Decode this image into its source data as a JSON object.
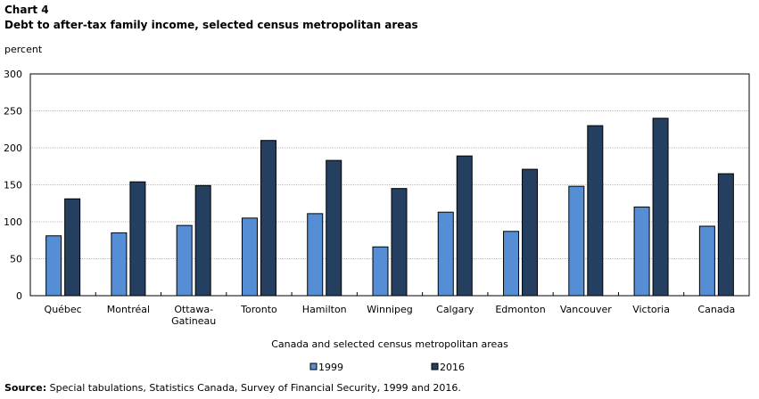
{
  "chart_data": {
    "type": "bar",
    "chart_label": "Chart 4",
    "title": "Debt to after-tax family income, selected census metropolitan areas",
    "ylabel": "percent",
    "xlabel": "Canada and selected census metropolitan areas",
    "ylim": [
      0,
      300
    ],
    "yticks": [
      0,
      50,
      100,
      150,
      200,
      250,
      300
    ],
    "grid": true,
    "legend": "bottom",
    "categories": [
      "Québec",
      "Montréal",
      "Ottawa-\nGatineau",
      "Toronto",
      "Hamilton",
      "Winnipeg",
      "Calgary",
      "Edmonton",
      "Vancouver",
      "Victoria",
      "Canada"
    ],
    "series": [
      {
        "name": "1999",
        "color": "#558ed5",
        "values": [
          81,
          85,
          95,
          105,
          111,
          66,
          113,
          87,
          148,
          120,
          94
        ]
      },
      {
        "name": "2016",
        "color": "#243f60",
        "values": [
          131,
          154,
          149,
          210,
          183,
          145,
          189,
          171,
          230,
          240,
          165
        ]
      }
    ]
  },
  "source_label": "Source:",
  "source_text": " Special tabulations, Statistics Canada, Survey of Financial Security, 1999 and 2016."
}
